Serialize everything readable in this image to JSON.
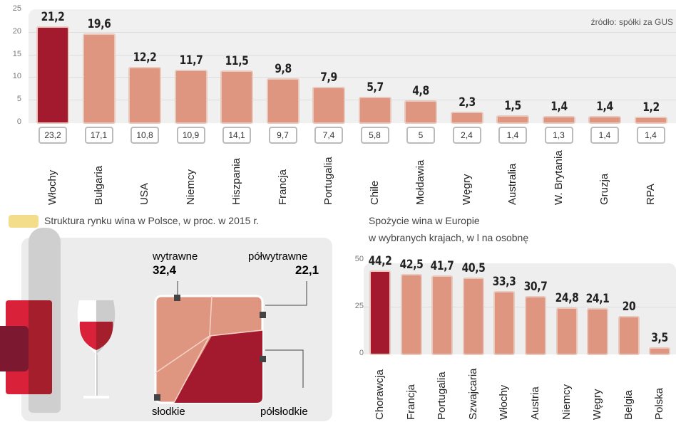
{
  "source": "źródło: spółki za GUS",
  "chart_data": [
    {
      "type": "bar",
      "title": "",
      "ylim": [
        0,
        25
      ],
      "yticks": [
        0,
        5,
        10,
        15,
        20,
        25
      ],
      "grid": true,
      "categories": [
        "Włochy",
        "Bułgaria",
        "USA",
        "Niemcy",
        "Hiszpania",
        "Francja",
        "Portugalia",
        "Chile",
        "Mołdawia",
        "Węgry",
        "Australia",
        "W. Brytania",
        "Gruzja",
        "RPA"
      ],
      "series": [
        {
          "values": [
            21.2,
            19.6,
            12.2,
            11.7,
            11.5,
            9.8,
            7.9,
            5.7,
            4.8,
            2.3,
            1.5,
            1.4,
            1.4,
            1.2
          ],
          "labels": [
            "21,2",
            "19,6",
            "12,2",
            "11,7",
            "11,5",
            "9,8",
            "7,9",
            "5,7",
            "4,8",
            "2,3",
            "1,5",
            "1,4",
            "1,4",
            "1,2"
          ]
        },
        {
          "values": [
            23.2,
            17.1,
            10.8,
            10.9,
            14.1,
            9.7,
            7.4,
            5.8,
            5,
            2.4,
            1.4,
            1.3,
            1.4,
            1.4
          ],
          "labels": [
            "23,2",
            "17,1",
            "10,8",
            "10,9",
            "14,1",
            "9,7",
            "7,4",
            "5,8",
            "5",
            "2,4",
            "1,4",
            "1,3",
            "1,4",
            "1,4"
          ]
        }
      ],
      "colors": {
        "highlight": "#a31a2e",
        "bar": "#df9680"
      }
    },
    {
      "type": "treemap",
      "title": "Struktura rynku wina w Polsce, w proc. w 2015 r.",
      "segments": [
        {
          "name": "wytrawne",
          "value": 32.4,
          "label": "32,4"
        },
        {
          "name": "półwytrawne",
          "value": 22.1,
          "label": "22,1"
        },
        {
          "name": "słodkie"
        },
        {
          "name": "półsłodkie"
        }
      ]
    },
    {
      "type": "bar",
      "title": "Spożycie wina w Europie",
      "subtitle": "w wybranych krajach, w l na osobnę",
      "ylim": [
        0,
        50
      ],
      "yticks": [
        0,
        25,
        50
      ],
      "grid": true,
      "categories": [
        "Chorawcja",
        "Francja",
        "Portugalia",
        "Szwajcaria",
        "Włochy",
        "Austria",
        "Niemcy",
        "Węgry",
        "Belgia",
        "Polska"
      ],
      "values": [
        44.2,
        42.5,
        41.7,
        40.5,
        33.3,
        30.7,
        24.8,
        24.1,
        20,
        3.5
      ],
      "labels": [
        "44,2",
        "42,5",
        "41,7",
        "40,5",
        "33,3",
        "30,7",
        "24,8",
        "24,1",
        "20",
        "3,5"
      ]
    }
  ]
}
